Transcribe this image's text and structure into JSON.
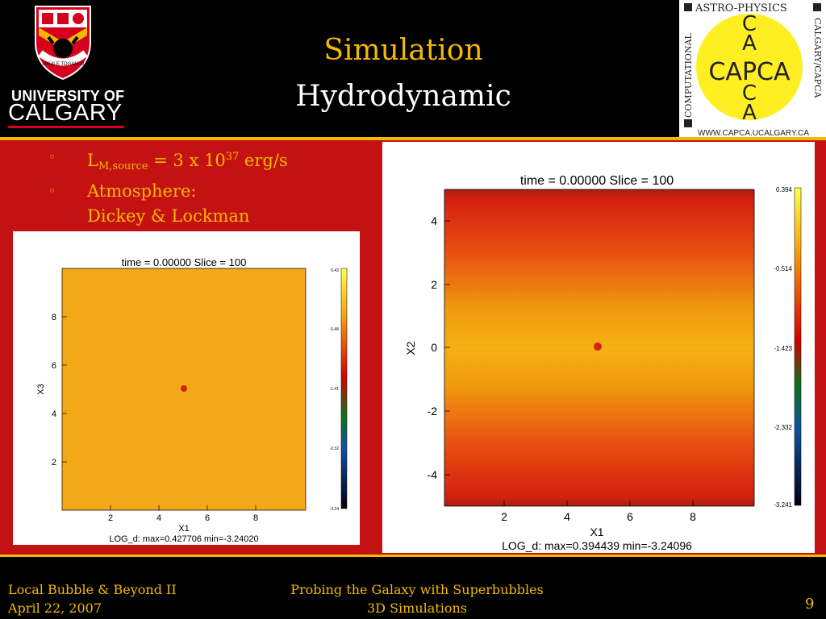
{
  "header": {
    "university_line1": "UNIVERSITY OF",
    "university_line2": "CALGARY",
    "crest_motto": "MO SHÙILE TOGAM SÙAS",
    "title": "Simulation",
    "subtitle": "Hydrodynamic",
    "capca": {
      "top": "ASTRO-PHYSICS",
      "left": "COMPUTATIONAL",
      "right": "CALGARY/CAPCA",
      "center": "CAPCA",
      "col_top1": "C",
      "col_top2": "A",
      "col_bottom1": "C",
      "col_bottom2": "A",
      "url": "WWW.CAPCA.UCALGARY.CA"
    }
  },
  "bullets": {
    "bullet_glyph": "◦",
    "l_main": "L",
    "l_sub": "M,source",
    "l_rest": " = 3 x 10",
    "l_sup": "37",
    "l_unit": " erg/s",
    "atm_label": "Atmosphere:",
    "atm_value": "Dickey & Lockman"
  },
  "plots": {
    "left": {
      "title": "time = 0.00000  Slice = 100",
      "xlabel": "X1",
      "ylabel": "X3",
      "footer": "LOG_d: max=0.427706 min=-3.24020",
      "xticks": [
        "2",
        "4",
        "6",
        "8"
      ],
      "yticks": [
        "2",
        "4",
        "6",
        "8"
      ],
      "colorbar_ticks": [
        "0.43",
        "-0.48",
        "-1.41",
        "-2.32",
        "-3.24"
      ],
      "fill_color": "#f2a818"
    },
    "right": {
      "title": "time = 0.00000  Slice = 100",
      "xlabel": "X1",
      "ylabel": "X2",
      "footer": "LOG_d: max=0.394439 min=-3.24096",
      "xticks": [
        "2",
        "4",
        "6",
        "8"
      ],
      "yticks": [
        "4",
        "2",
        "0",
        "-2",
        "-4"
      ],
      "colorbar_ticks": [
        "0.394",
        "-0.514",
        "-1.423",
        "-2.332",
        "-3.241"
      ]
    }
  },
  "footer": {
    "left_line1": "Local Bubble & Beyond II",
    "left_line2": "April 22, 2007",
    "center_line1": "Probing the Galaxy with Superbubbles",
    "center_line2": "3D Simulations",
    "page_number": "9"
  },
  "colors": {
    "gold": "#f5b800",
    "slide_red": "#c41212",
    "capca_yellow": "#ffee22"
  }
}
